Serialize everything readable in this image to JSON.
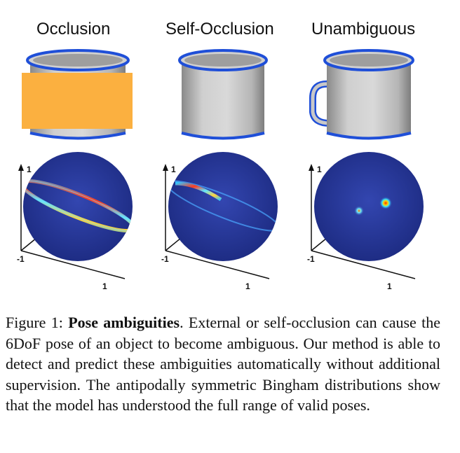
{
  "columns": [
    {
      "title": "Occlusion"
    },
    {
      "title": "Self-Occlusion"
    },
    {
      "title": "Unambiguous"
    }
  ],
  "axis_labels": {
    "top": "1",
    "left": "-1",
    "bottom": "1"
  },
  "caption": {
    "prefix": "Figure 1: ",
    "bold": "Pose ambiguities",
    "text": ". External or self-occlusion can cause the 6DoF pose of an object to become ambiguous. Our method is able to detect and predict these ambiguities automatically without additional supervision. The antipodally symmetric Bingham distributions show that the model has understood the full range of valid poses."
  },
  "colors": {
    "mug_body": "#c8c8c8",
    "mug_rim": "#1f4fd8",
    "occluder": "#fbb040",
    "sphere_bg": "#2a3a9a"
  }
}
